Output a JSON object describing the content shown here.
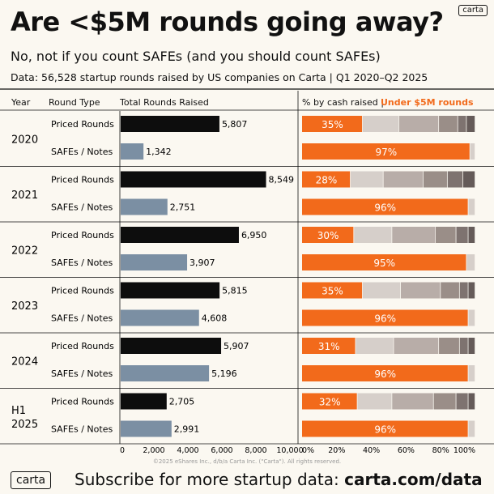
{
  "title": "Are <$5M rounds going away?",
  "logo": "carta",
  "subtitle": "No, not if you count SAFEs (and you should count SAFEs)",
  "source": "Data: 56,528 startup rounds raised by US companies on Carta | Q1 2020–Q2 2025",
  "headers": {
    "year": "Year",
    "round_type": "Round Type",
    "total": "Total Rounds Raised",
    "pct_prefix": "% by cash raised |",
    "pct_highlight": "Under $5M rounds"
  },
  "copyright": "©2025 eShares Inc., d/b/a Carta Inc. (\"Carta\"). All rights reserved.",
  "footer": {
    "prefix": "Subscribe for more startup data: ",
    "link": "carta.com/data"
  },
  "colors": {
    "priced": "#0d0d0d",
    "safe": "#7b8fa3",
    "orange": "#f26a1b",
    "grays": [
      "#d6cfca",
      "#b8ada8",
      "#9a8e88",
      "#7e7370",
      "#655b59"
    ]
  },
  "chart_data": [
    {
      "type": "bar",
      "title": "Total Rounds Raised",
      "categories": [
        "2020",
        "2021",
        "2022",
        "2023",
        "2024",
        "H1 2025"
      ],
      "series": [
        {
          "name": "Priced Rounds",
          "values": [
            5807,
            8549,
            6950,
            5815,
            5907,
            2705
          ],
          "labels": [
            "5,807",
            "8,549",
            "6,950",
            "5,815",
            "5,907",
            "2,705"
          ]
        },
        {
          "name": "SAFEs / Notes",
          "values": [
            1342,
            2751,
            3907,
            4608,
            5196,
            2991
          ],
          "labels": [
            "1,342",
            "2,751",
            "3,907",
            "4,608",
            "5,196",
            "2,991"
          ]
        }
      ],
      "xlim": [
        0,
        10000
      ],
      "xticks": [
        "0",
        "2,000",
        "4,000",
        "6,000",
        "8,000",
        "10,000"
      ]
    },
    {
      "type": "bar",
      "stacked": true,
      "title": "% by cash raised | Under $5M rounds",
      "categories": [
        "2020",
        "2021",
        "2022",
        "2023",
        "2024",
        "H1 2025"
      ],
      "series": [
        {
          "name": "Priced Rounds",
          "under5m": [
            35,
            28,
            30,
            35,
            31,
            32
          ],
          "segments": [
            [
              35,
              21,
              23,
              11,
              5,
              5
            ],
            [
              28,
              19,
              23,
              14,
              9,
              7
            ],
            [
              30,
              22,
              25,
              12,
              7,
              4
            ],
            [
              35,
              22,
              23,
              11,
              5,
              4
            ],
            [
              31,
              22,
              26,
              12,
              5,
              4
            ],
            [
              32,
              20,
              24,
              13,
              7,
              4
            ]
          ]
        },
        {
          "name": "SAFEs / Notes",
          "under5m": [
            97,
            96,
            95,
            96,
            96,
            96
          ],
          "segments": [
            [
              97,
              3
            ],
            [
              96,
              4
            ],
            [
              95,
              5
            ],
            [
              96,
              4
            ],
            [
              96,
              4
            ],
            [
              96,
              4
            ]
          ]
        }
      ],
      "xticks": [
        "0%",
        "20%",
        "40%",
        "60%",
        "80%",
        "100%"
      ]
    }
  ]
}
